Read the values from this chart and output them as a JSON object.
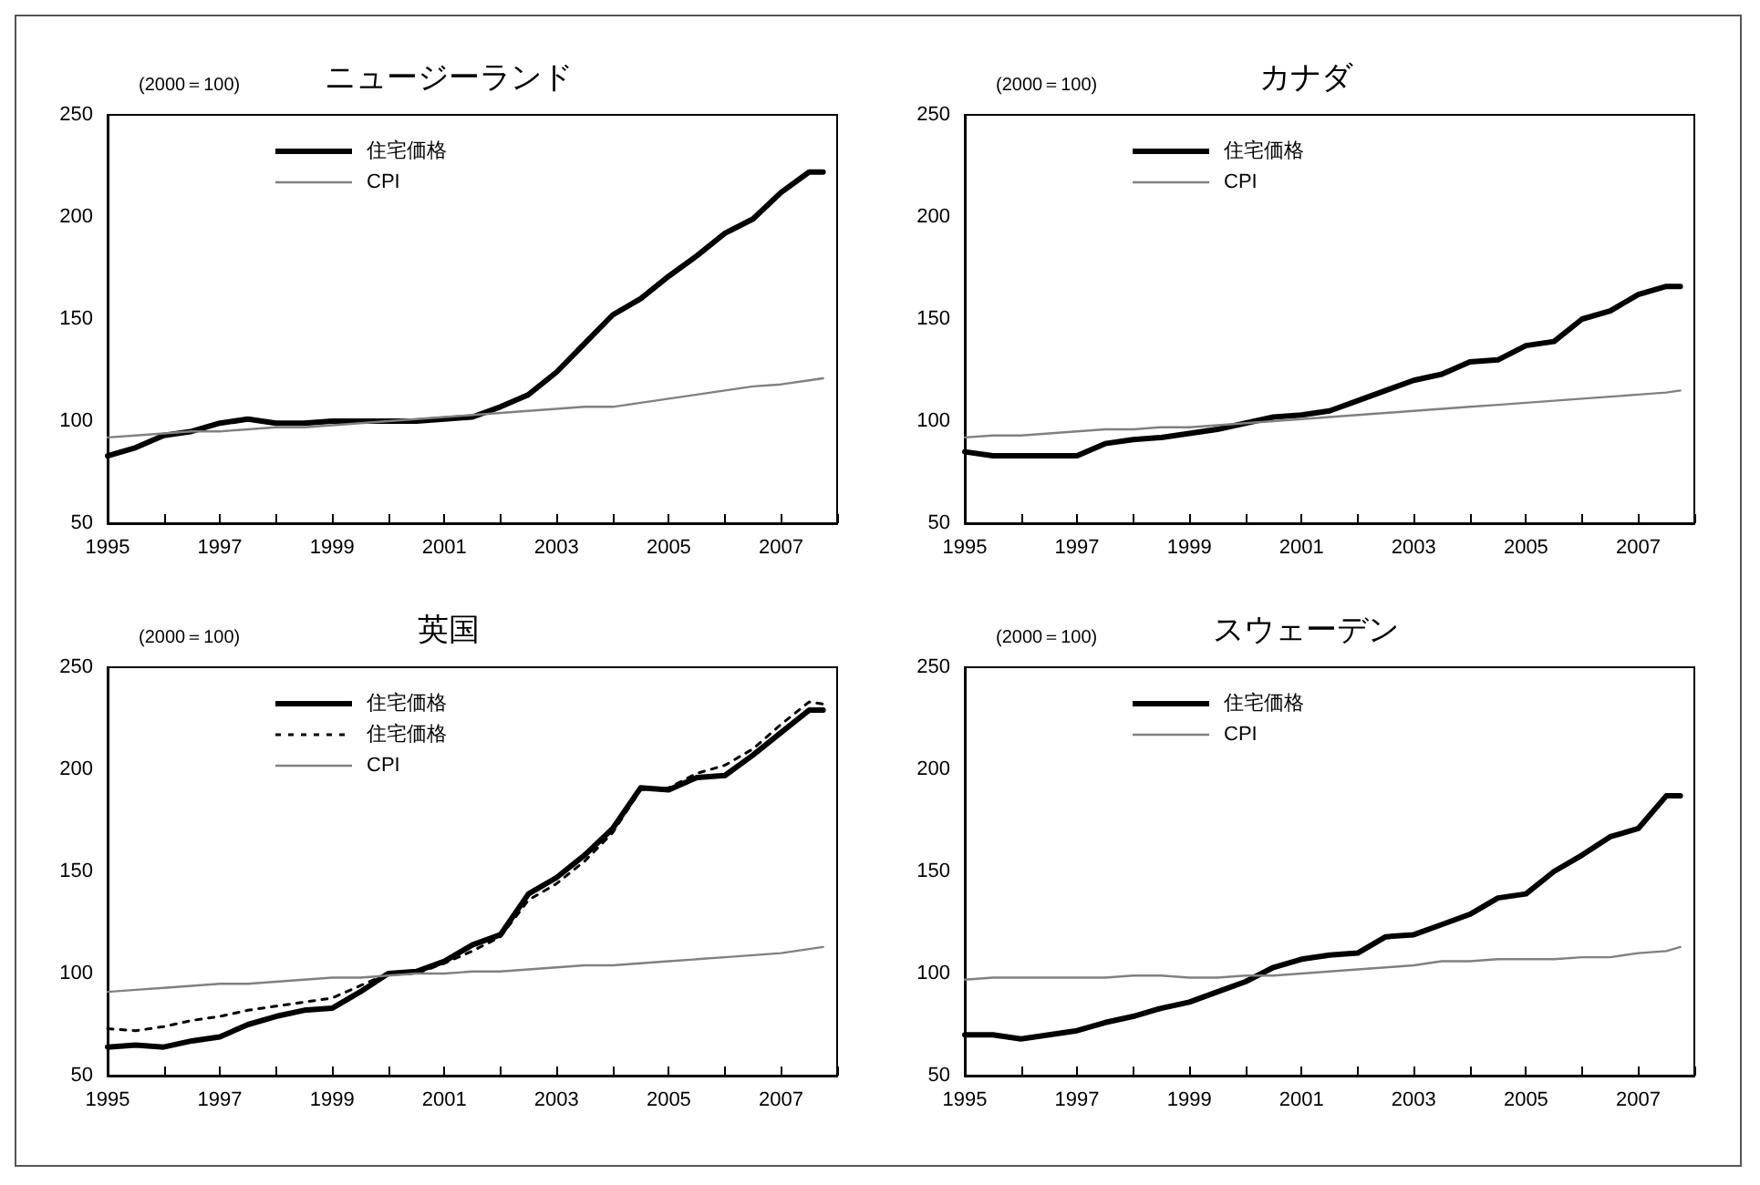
{
  "chart_data": [
    {
      "type": "line",
      "title": "ニュージーランド",
      "ylabel": "(2000＝100)",
      "legend": "top left",
      "grid": false,
      "marker": "none",
      "x": [
        1995,
        1995.5,
        1996,
        1996.5,
        1997,
        1997.5,
        1998,
        1998.5,
        1999,
        1999.5,
        2000,
        2000.5,
        2001,
        2001.5,
        2002,
        2002.5,
        2003,
        2003.5,
        2004,
        2004.5,
        2005,
        2005.5,
        2006,
        2006.5,
        2007,
        2007.5,
        2007.75
      ],
      "xlim": [
        1995,
        2008
      ],
      "xticks": [
        1995,
        {
          "value": 1996,
          "label": null
        },
        1997,
        {
          "value": 1998,
          "label": null
        },
        1999,
        {
          "value": 2000,
          "label": null
        },
        2001,
        {
          "value": 2002,
          "label": null
        },
        2003,
        {
          "value": 2004,
          "label": null
        },
        2005,
        {
          "value": 2006,
          "label": null
        },
        2007,
        {
          "value": 2008,
          "label": null
        }
      ],
      "ylim": [
        50,
        250
      ],
      "yticks": [
        50,
        100,
        150,
        200,
        250
      ],
      "series": [
        {
          "name": "住宅価格",
          "color": "#000000",
          "line_style": "solid",
          "values": [
            83,
            87,
            93,
            95,
            99,
            101,
            99,
            99,
            100,
            100,
            100,
            100,
            101,
            102,
            107,
            113,
            124,
            138,
            152,
            160,
            171,
            181,
            192,
            199,
            212,
            222,
            222
          ]
        },
        {
          "name": "CPI",
          "color": "#808080",
          "line_style": "solid",
          "values": [
            92,
            93,
            94,
            95,
            95,
            96,
            97,
            97,
            98,
            99,
            100,
            101,
            102,
            103,
            104,
            105,
            106,
            107,
            107,
            109,
            111,
            113,
            115,
            117,
            118,
            120,
            121
          ]
        }
      ]
    },
    {
      "type": "line",
      "title": "カナダ",
      "ylabel": "(2000＝100)",
      "legend": "top left",
      "grid": false,
      "marker": "none",
      "x": [
        1995,
        1995.5,
        1996,
        1996.5,
        1997,
        1997.5,
        1998,
        1998.5,
        1999,
        1999.5,
        2000,
        2000.5,
        2001,
        2001.5,
        2002,
        2002.5,
        2003,
        2003.5,
        2004,
        2004.5,
        2005,
        2005.5,
        2006,
        2006.5,
        2007,
        2007.5,
        2007.75
      ],
      "xlim": [
        1995,
        2008
      ],
      "xticks": [
        1995,
        {
          "value": 1996,
          "label": null
        },
        1997,
        {
          "value": 1998,
          "label": null
        },
        1999,
        {
          "value": 2000,
          "label": null
        },
        2001,
        {
          "value": 2002,
          "label": null
        },
        2003,
        {
          "value": 2004,
          "label": null
        },
        2005,
        {
          "value": 2006,
          "label": null
        },
        2007,
        {
          "value": 2008,
          "label": null
        }
      ],
      "ylim": [
        50,
        250
      ],
      "yticks": [
        50,
        100,
        150,
        200,
        250
      ],
      "series": [
        {
          "name": "住宅価格",
          "color": "#000000",
          "line_style": "solid",
          "values": [
            85,
            83,
            83,
            83,
            83,
            89,
            91,
            92,
            94,
            96,
            99,
            102,
            103,
            105,
            110,
            115,
            120,
            123,
            129,
            130,
            137,
            139,
            150,
            154,
            162,
            166,
            166
          ]
        },
        {
          "name": "CPI",
          "color": "#808080",
          "line_style": "solid",
          "values": [
            92,
            93,
            93,
            94,
            95,
            96,
            96,
            97,
            97,
            98,
            99,
            100,
            101,
            102,
            103,
            104,
            105,
            106,
            107,
            108,
            109,
            110,
            111,
            112,
            113,
            114,
            115
          ]
        }
      ]
    },
    {
      "type": "line",
      "title": "英国",
      "ylabel": "(2000＝100)",
      "legend": "top left",
      "grid": false,
      "marker": "none",
      "x": [
        1995,
        1995.5,
        1996,
        1996.5,
        1997,
        1997.5,
        1998,
        1998.5,
        1999,
        1999.5,
        2000,
        2000.5,
        2001,
        2001.5,
        2002,
        2002.5,
        2003,
        2003.5,
        2004,
        2004.5,
        2005,
        2005.5,
        2006,
        2006.5,
        2007,
        2007.5,
        2007.75
      ],
      "xlim": [
        1995,
        2008
      ],
      "xticks": [
        1995,
        {
          "value": 1996,
          "label": null
        },
        1997,
        {
          "value": 1998,
          "label": null
        },
        1999,
        {
          "value": 2000,
          "label": null
        },
        2001,
        {
          "value": 2002,
          "label": null
        },
        2003,
        {
          "value": 2004,
          "label": null
        },
        2005,
        {
          "value": 2006,
          "label": null
        },
        2007,
        {
          "value": 2008,
          "label": null
        }
      ],
      "ylim": [
        50,
        250
      ],
      "yticks": [
        50,
        100,
        150,
        200,
        250
      ],
      "series": [
        {
          "name": "住宅価格",
          "color": "#000000",
          "line_style": "solid",
          "values": [
            64,
            65,
            64,
            67,
            69,
            75,
            79,
            82,
            83,
            91,
            100,
            101,
            106,
            114,
            119,
            139,
            147,
            158,
            171,
            191,
            190,
            196,
            197,
            207,
            218,
            229,
            229
          ]
        },
        {
          "name": "住宅価格",
          "color": "#000000",
          "line_style": "dotted",
          "values": [
            73,
            72,
            74,
            77,
            79,
            82,
            84,
            86,
            88,
            94,
            100,
            100,
            105,
            111,
            118,
            136,
            144,
            155,
            169,
            190,
            191,
            198,
            202,
            210,
            222,
            233,
            232
          ]
        },
        {
          "name": "CPI",
          "color": "#808080",
          "line_style": "solid",
          "values": [
            91,
            92,
            93,
            94,
            95,
            95,
            96,
            97,
            98,
            98,
            99,
            100,
            100,
            101,
            101,
            102,
            103,
            104,
            104,
            105,
            106,
            107,
            108,
            109,
            110,
            112,
            113
          ]
        }
      ]
    },
    {
      "type": "line",
      "title": "スウェーデン",
      "ylabel": "(2000＝100)",
      "legend": "top left",
      "grid": false,
      "marker": "none",
      "x": [
        1995,
        1995.5,
        1996,
        1996.5,
        1997,
        1997.5,
        1998,
        1998.5,
        1999,
        1999.5,
        2000,
        2000.5,
        2001,
        2001.5,
        2002,
        2002.5,
        2003,
        2003.5,
        2004,
        2004.5,
        2005,
        2005.5,
        2006,
        2006.5,
        2007,
        2007.5,
        2007.75
      ],
      "xlim": [
        1995,
        2008
      ],
      "xticks": [
        1995,
        {
          "value": 1996,
          "label": null
        },
        1997,
        {
          "value": 1998,
          "label": null
        },
        1999,
        {
          "value": 2000,
          "label": null
        },
        2001,
        {
          "value": 2002,
          "label": null
        },
        2003,
        {
          "value": 2004,
          "label": null
        },
        2005,
        {
          "value": 2006,
          "label": null
        },
        2007,
        {
          "value": 2008,
          "label": null
        }
      ],
      "ylim": [
        50,
        250
      ],
      "yticks": [
        50,
        100,
        150,
        200,
        250
      ],
      "series": [
        {
          "name": "住宅価格",
          "color": "#000000",
          "line_style": "solid",
          "values": [
            70,
            70,
            68,
            70,
            72,
            76,
            79,
            83,
            86,
            91,
            96,
            103,
            107,
            109,
            110,
            118,
            119,
            124,
            129,
            137,
            139,
            150,
            158,
            167,
            171,
            187,
            187
          ]
        },
        {
          "name": "CPI",
          "color": "#808080",
          "line_style": "solid",
          "values": [
            97,
            98,
            98,
            98,
            98,
            98,
            99,
            99,
            98,
            98,
            99,
            99,
            100,
            101,
            102,
            103,
            104,
            106,
            106,
            107,
            107,
            107,
            108,
            108,
            110,
            111,
            113
          ]
        }
      ]
    }
  ]
}
